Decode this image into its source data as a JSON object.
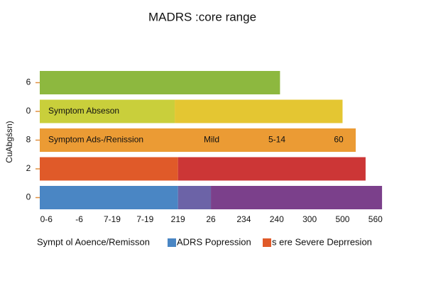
{
  "chart_data": {
    "type": "hbar-stacked",
    "title": "MADRS :core range",
    "ylabel": "CuAbgśsn)",
    "xlim": [
      -0.2,
      10.5
    ],
    "xticks": [
      {
        "value": 0,
        "label": "0-6"
      },
      {
        "value": 1,
        "label": "-6"
      },
      {
        "value": 2,
        "label": "7-19"
      },
      {
        "value": 3,
        "label": "7-19"
      },
      {
        "value": 4,
        "label": "219"
      },
      {
        "value": 5,
        "label": "26"
      },
      {
        "value": 6,
        "label": "234"
      },
      {
        "value": 7,
        "label": "240"
      },
      {
        "value": 8,
        "label": "300"
      },
      {
        "value": 9,
        "label": "500"
      },
      {
        "value": 10,
        "label": "560"
      }
    ],
    "bars": [
      {
        "label": "6",
        "segments": [
          {
            "value": 7.3,
            "color": "#8db83f"
          }
        ]
      },
      {
        "label": "0",
        "segments": [
          {
            "value": 4.1,
            "color": "#c9cf3b"
          },
          {
            "value": 5.1,
            "color": "#e4c632"
          }
        ],
        "texts": [
          "Symptom  Abseson"
        ]
      },
      {
        "label": "8",
        "segments": [
          {
            "value": 9.6,
            "color": "#eb9b34"
          }
        ],
        "texts": [
          "Symptom  Ads-/Renission",
          "Mild",
          "5-14",
          "60"
        ]
      },
      {
        "label": "2",
        "segments": [
          {
            "value": 4.2,
            "color": "#e05a29"
          },
          {
            "value": 5.7,
            "color": "#cc3636"
          }
        ]
      },
      {
        "label": "0",
        "segments": [
          {
            "value": 4.2,
            "color": "#4a86c4"
          },
          {
            "value": 1.0,
            "color": "#6c63a7"
          },
          {
            "value": 5.2,
            "color": "#7b408b"
          }
        ]
      }
    ],
    "legend": [
      {
        "name": "Sympt ol Aoence/Remisson"
      },
      {
        "name": "ADRS Popression",
        "color": "#4a86c4"
      },
      {
        "name": "s ere Severe Deprresion",
        "color": "#e05a29"
      }
    ]
  }
}
